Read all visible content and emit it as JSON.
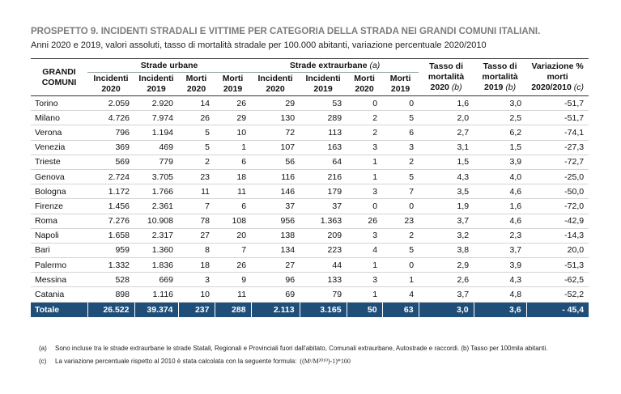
{
  "title": "PROSPETTO 9. INCIDENTI STRADALI E VITTIME PER CATEGORIA DELLA STRADA NEI GRANDI COMUNI ITALIANI.",
  "subtitle": "Anni 2020 e 2019, valori assoluti, tasso di mortalità stradale per 100.000 abitanti, variazione percentuale 2020/2010",
  "table": {
    "group_headers": {
      "row_header": "GRANDI COMUNI",
      "urban": "Strade urbane",
      "extra": "Strade extraurbane",
      "extra_note": "(a)"
    },
    "column_headers": [
      "Incidenti 2020",
      "Incidenti 2019",
      "Morti 2020",
      "Morti 2019",
      "Incidenti 2020",
      "Incidenti 2019",
      "Morti 2020",
      "Morti 2019"
    ],
    "rate_headers": [
      {
        "label": "Tasso di mortalità 2020",
        "note": "(b)"
      },
      {
        "label": "Tasso di mortalità 2019",
        "note": "(b)"
      }
    ],
    "change_header": {
      "label": "Variazione % morti 2020/2010",
      "note": "(c)"
    },
    "rows": [
      [
        "Torino",
        "2.059",
        "2.920",
        "14",
        "26",
        "29",
        "53",
        "0",
        "0",
        "1,6",
        "3,0",
        "-51,7"
      ],
      [
        "Milano",
        "4.726",
        "7.974",
        "26",
        "29",
        "130",
        "289",
        "2",
        "5",
        "2,0",
        "2,5",
        "-51,7"
      ],
      [
        "Verona",
        "796",
        "1.194",
        "5",
        "10",
        "72",
        "113",
        "2",
        "6",
        "2,7",
        "6,2",
        "-74,1"
      ],
      [
        "Venezia",
        "369",
        "469",
        "5",
        "1",
        "107",
        "163",
        "3",
        "3",
        "3,1",
        "1,5",
        "-27,3"
      ],
      [
        "Trieste",
        "569",
        "779",
        "2",
        "6",
        "56",
        "64",
        "1",
        "2",
        "1,5",
        "3,9",
        "-72,7"
      ],
      [
        "Genova",
        "2.724",
        "3.705",
        "23",
        "18",
        "116",
        "216",
        "1",
        "5",
        "4,3",
        "4,0",
        "-25,0"
      ],
      [
        "Bologna",
        "1.172",
        "1.766",
        "11",
        "11",
        "146",
        "179",
        "3",
        "7",
        "3,5",
        "4,6",
        "-50,0"
      ],
      [
        "Firenze",
        "1.456",
        "2.361",
        "7",
        "6",
        "37",
        "37",
        "0",
        "0",
        "1,9",
        "1,6",
        "-72,0"
      ],
      [
        "Roma",
        "7.276",
        "10.908",
        "78",
        "108",
        "956",
        "1.363",
        "26",
        "23",
        "3,7",
        "4,6",
        "-42,9"
      ],
      [
        "Napoli",
        "1.658",
        "2.317",
        "27",
        "20",
        "138",
        "209",
        "3",
        "2",
        "3,2",
        "2,3",
        "-14,3"
      ],
      [
        "Bari",
        "959",
        "1.360",
        "8",
        "7",
        "134",
        "223",
        "4",
        "5",
        "3,8",
        "3,7",
        "20,0"
      ],
      [
        "Palermo",
        "1.332",
        "1.836",
        "18",
        "26",
        "27",
        "44",
        "1",
        "0",
        "2,9",
        "3,9",
        "-51,3"
      ],
      [
        "Messina",
        "528",
        "669",
        "3",
        "9",
        "96",
        "133",
        "3",
        "1",
        "2,6",
        "4,3",
        "-62,5"
      ],
      [
        "Catania",
        "898",
        "1.116",
        "10",
        "11",
        "69",
        "79",
        "1",
        "4",
        "3,7",
        "4,8",
        "-52,2"
      ]
    ],
    "total": [
      "Totale",
      "26.522",
      "39.374",
      "237",
      "288",
      "2.113",
      "3.165",
      "50",
      "63",
      "3,0",
      "3,6",
      "- 45,4"
    ]
  },
  "notes": [
    {
      "mark": "(a)",
      "text": "Sono incluse tra le strade extraurbane le strade Statali, Regionali e Provinciali fuori dall'abitato, Comunali extraurbane, Autostrade e raccordi. (b) Tasso per 100mila abitanti."
    },
    {
      "mark": "(c)",
      "text": "La variazione percentuale rispetto al 2010 è stata calcolata con la seguente formula:",
      "formula": "((Mᵗ/M²⁰¹⁰)-1)*100"
    }
  ]
}
